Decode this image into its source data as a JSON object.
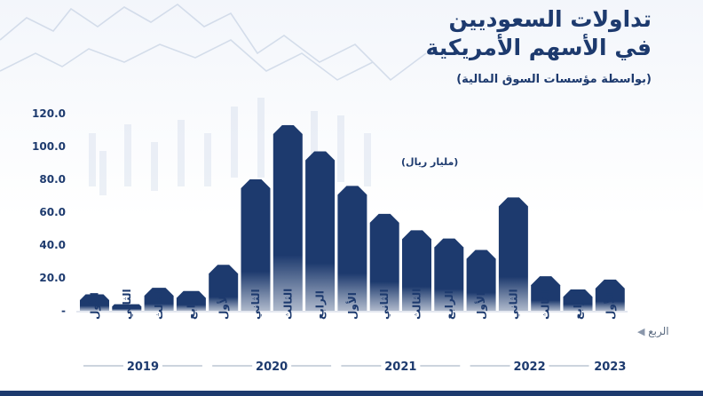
{
  "title_line1": "تداولات السعوديين",
  "title_line2": "في الأسهم الأمريكية",
  "subtitle": "(بواسطة مؤسسات السوق المالية)",
  "unit": "(مليار ريال)",
  "quarter_axis_label": "الربع",
  "colors": {
    "bar": "#1d3a6e",
    "text": "#1d3a6e",
    "axis": "#5a6a80"
  },
  "icons": {
    "arrow": "left-arrow-icon"
  },
  "chart_data": {
    "type": "bar",
    "categories": [
      "الأول",
      "الثاني",
      "الثالث",
      "الرابع",
      "الأول",
      "الثاني",
      "الثالث",
      "الرابع",
      "الأول",
      "الثاني",
      "الثالث",
      "الرابع",
      "الأول",
      "الثاني",
      "الثالث",
      "الرابع",
      "الأول"
    ],
    "years": [
      "2019",
      "2019",
      "2019",
      "2019",
      "2020",
      "2020",
      "2020",
      "2020",
      "2021",
      "2021",
      "2021",
      "2021",
      "2022",
      "2022",
      "2022",
      "2022",
      "2023"
    ],
    "year_groups": [
      {
        "label": "2019",
        "start": 0,
        "end": 3
      },
      {
        "label": "2020",
        "start": 4,
        "end": 7
      },
      {
        "label": "2021",
        "start": 8,
        "end": 11
      },
      {
        "label": "2022",
        "start": 12,
        "end": 15
      },
      {
        "label": "2023",
        "start": 16,
        "end": 16
      }
    ],
    "values": [
      10,
      4,
      14,
      12,
      28,
      80,
      113,
      97,
      76,
      59,
      49,
      44,
      37,
      69,
      21,
      13,
      19
    ],
    "yticks": [
      "-",
      "20.0",
      "40.0",
      "60.0",
      "80.0",
      "100.0",
      "120.0"
    ],
    "ylim": [
      0,
      120
    ],
    "grid": false
  }
}
